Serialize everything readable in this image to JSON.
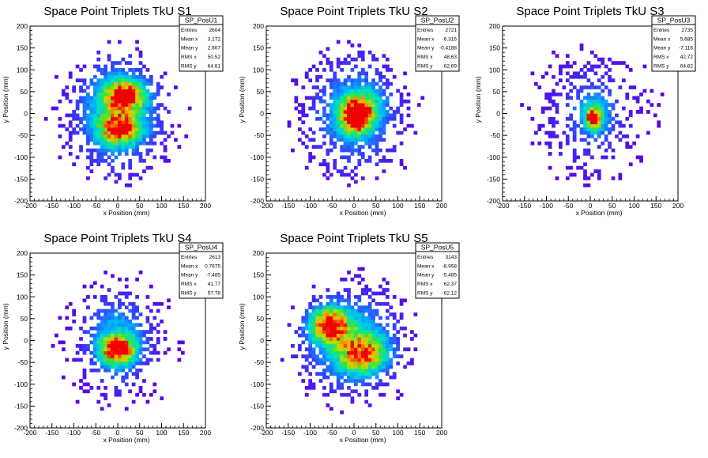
{
  "chart_data": [
    {
      "type": "heatmap",
      "title": "Space Point Triplets TkU S1",
      "xlabel": "x Position (mm)",
      "ylabel": "y Position (mm)",
      "xlim": [
        -200,
        200
      ],
      "ylim": [
        -200,
        200
      ],
      "xticks": [
        -200,
        -150,
        -100,
        -50,
        0,
        50,
        100,
        150,
        200
      ],
      "yticks": [
        -200,
        -150,
        -100,
        -50,
        0,
        50,
        100,
        150,
        200
      ],
      "stats": {
        "name": "SP_PosU1",
        "rows": [
          {
            "label": "Entries",
            "value": "2604"
          },
          {
            "label": "Mean x",
            "value": "3.172"
          },
          {
            "label": "Mean y",
            "value": "2.607"
          },
          {
            "label": "RMS x",
            "value": "50.52"
          },
          {
            "label": "RMS y",
            "value": "64.81"
          }
        ]
      },
      "distribution": {
        "clusters": [
          {
            "x": 15,
            "y": 40,
            "sx": 28,
            "sy": 22,
            "w": 1.0
          },
          {
            "x": 5,
            "y": -35,
            "sx": 28,
            "sy": 20,
            "w": 0.9
          },
          {
            "x": 0,
            "y": 0,
            "sx": 55,
            "sy": 70,
            "w": 0.45
          }
        ]
      }
    },
    {
      "type": "heatmap",
      "title": "Space Point Triplets TkU S2",
      "xlabel": "x Position (mm)",
      "ylabel": "y Position (mm)",
      "xlim": [
        -200,
        200
      ],
      "ylim": [
        -200,
        200
      ],
      "xticks": [
        -200,
        -150,
        -100,
        -50,
        0,
        50,
        100,
        150,
        200
      ],
      "yticks": [
        -200,
        -150,
        -100,
        -50,
        0,
        50,
        100,
        150,
        200
      ],
      "stats": {
        "name": "SP_PosU2",
        "rows": [
          {
            "label": "Entries",
            "value": "2721"
          },
          {
            "label": "Mean x",
            "value": "6.316"
          },
          {
            "label": "Mean y",
            "value": "-0.4188"
          },
          {
            "label": "RMS x",
            "value": "48.63"
          },
          {
            "label": "RMS y",
            "value": "62.69"
          }
        ]
      },
      "distribution": {
        "clusters": [
          {
            "x": 5,
            "y": -10,
            "sx": 22,
            "sy": 22,
            "w": 1.0
          },
          {
            "x": 15,
            "y": 15,
            "sx": 30,
            "sy": 25,
            "w": 0.5
          },
          {
            "x": 0,
            "y": 0,
            "sx": 60,
            "sy": 75,
            "w": 0.3
          }
        ]
      }
    },
    {
      "type": "heatmap",
      "title": "Space Point Triplets TkU S3",
      "xlabel": "x Position (mm)",
      "ylabel": "y Position (mm)",
      "xlim": [
        -200,
        200
      ],
      "ylim": [
        -200,
        200
      ],
      "xticks": [
        -200,
        -150,
        -100,
        -50,
        0,
        50,
        100,
        150,
        200
      ],
      "yticks": [
        -200,
        -150,
        -100,
        -50,
        0,
        50,
        100,
        150,
        200
      ],
      "stats": {
        "name": "SP_PosU3",
        "rows": [
          {
            "label": "Entries",
            "value": "2735"
          },
          {
            "label": "Mean x",
            "value": "5.685"
          },
          {
            "label": "Mean y",
            "value": "-7.116"
          },
          {
            "label": "RMS x",
            "value": "42.72"
          },
          {
            "label": "RMS y",
            "value": "64.82"
          }
        ]
      },
      "distribution": {
        "clusters": [
          {
            "x": 8,
            "y": -12,
            "sx": 10,
            "sy": 14,
            "w": 1.0
          },
          {
            "x": 10,
            "y": 0,
            "sx": 24,
            "sy": 30,
            "w": 0.35
          },
          {
            "x": 0,
            "y": 0,
            "sx": 60,
            "sy": 80,
            "w": 0.12
          }
        ]
      }
    },
    {
      "type": "heatmap",
      "title": "Space Point Triplets TkU S4",
      "xlabel": "x Position (mm)",
      "ylabel": "y Position (mm)",
      "xlim": [
        -200,
        200
      ],
      "ylim": [
        -200,
        200
      ],
      "xticks": [
        -200,
        -150,
        -100,
        -50,
        0,
        50,
        100,
        150,
        200
      ],
      "yticks": [
        -200,
        -150,
        -100,
        -50,
        0,
        50,
        100,
        150,
        200
      ],
      "stats": {
        "name": "SP_PosU4",
        "rows": [
          {
            "label": "Entries",
            "value": "2613"
          },
          {
            "label": "Mean x",
            "value": "0.7675"
          },
          {
            "label": "Mean y",
            "value": "-7.485"
          },
          {
            "label": "RMS x",
            "value": "41.77"
          },
          {
            "label": "RMS y",
            "value": "57.78"
          }
        ]
      },
      "distribution": {
        "clusters": [
          {
            "x": 0,
            "y": -20,
            "sx": 25,
            "sy": 20,
            "w": 1.0
          },
          {
            "x": 0,
            "y": 0,
            "sx": 45,
            "sy": 60,
            "w": 0.35
          }
        ]
      }
    },
    {
      "type": "heatmap",
      "title": "Space Point Triplets TkU S5",
      "xlabel": "x Position (mm)",
      "ylabel": "y Position (mm)",
      "xlim": [
        -200,
        200
      ],
      "ylim": [
        -200,
        200
      ],
      "xticks": [
        -200,
        -150,
        -100,
        -50,
        0,
        50,
        100,
        150,
        200
      ],
      "yticks": [
        -200,
        -150,
        -100,
        -50,
        0,
        50,
        100,
        150,
        200
      ],
      "stats": {
        "name": "SP_PosU5",
        "rows": [
          {
            "label": "Entries",
            "value": "3143"
          },
          {
            "label": "Mean x",
            "value": "-8.958"
          },
          {
            "label": "Mean y",
            "value": "-5.485"
          },
          {
            "label": "RMS x",
            "value": "62.37"
          },
          {
            "label": "RMS y",
            "value": "62.12"
          }
        ]
      },
      "distribution": {
        "clusters": [
          {
            "x": -55,
            "y": 35,
            "sx": 28,
            "sy": 25,
            "w": 1.0
          },
          {
            "x": 20,
            "y": -30,
            "sx": 35,
            "sy": 30,
            "w": 0.75
          },
          {
            "x": -10,
            "y": 0,
            "sx": 65,
            "sy": 65,
            "w": 0.35
          }
        ]
      }
    }
  ]
}
